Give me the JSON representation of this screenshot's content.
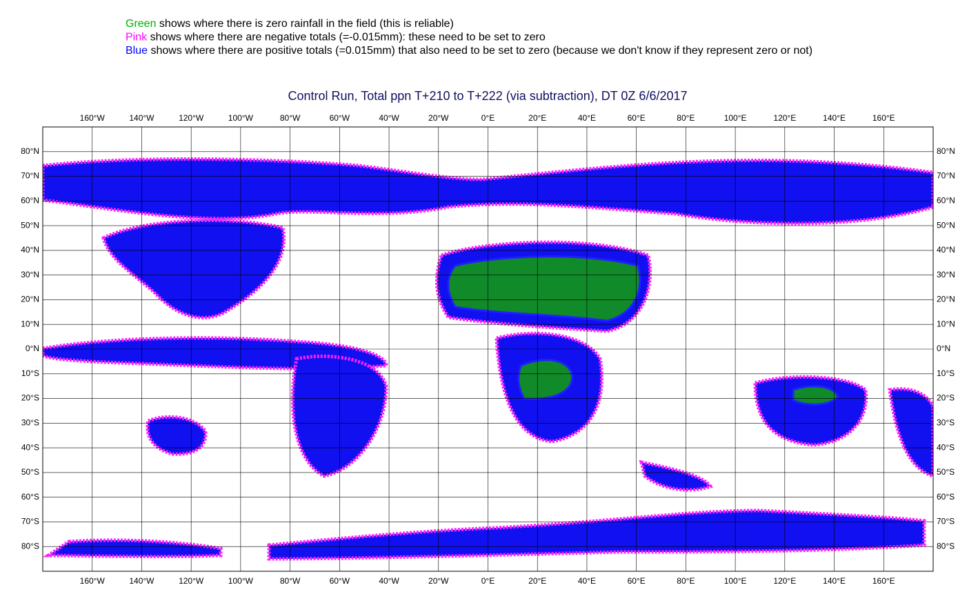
{
  "legend": [
    {
      "label": "Green",
      "color": "#00b000",
      "text": "shows where there is zero rainfall in the field (this is reliable)"
    },
    {
      "label": "Pink",
      "color": "#ff00ff",
      "text": "shows where there are negative totals (=-0.015mm): these need to be set to zero"
    },
    {
      "label": "Blue",
      "color": "#0000ff",
      "text": "shows where there are positive totals (=0.015mm) that also need to be set to zero (because we don't know if they represent zero or not)"
    }
  ],
  "chart_data": {
    "type": "map",
    "title": "Control Run, Total ppn T+210 to T+222 (via subtraction), DT 0Z 6/6/2017",
    "xlim": [
      -180,
      180
    ],
    "ylim": [
      -90,
      90
    ],
    "grid": true,
    "xticks": [
      {
        "value": -160,
        "label": "160°W"
      },
      {
        "value": -140,
        "label": "140°W"
      },
      {
        "value": -120,
        "label": "120°W"
      },
      {
        "value": -100,
        "label": "100°W"
      },
      {
        "value": -80,
        "label": "80°W"
      },
      {
        "value": -60,
        "label": "60°W"
      },
      {
        "value": -40,
        "label": "40°W"
      },
      {
        "value": -20,
        "label": "20°W"
      },
      {
        "value": 0,
        "label": "0°E"
      },
      {
        "value": 20,
        "label": "20°E"
      },
      {
        "value": 40,
        "label": "40°E"
      },
      {
        "value": 60,
        "label": "60°E"
      },
      {
        "value": 80,
        "label": "80°E"
      },
      {
        "value": 100,
        "label": "100°E"
      },
      {
        "value": 120,
        "label": "120°E"
      },
      {
        "value": 140,
        "label": "140°E"
      },
      {
        "value": 160,
        "label": "160°E"
      }
    ],
    "yticks": [
      {
        "value": 80,
        "label": "80°N"
      },
      {
        "value": 70,
        "label": "70°N"
      },
      {
        "value": 60,
        "label": "60°N"
      },
      {
        "value": 50,
        "label": "50°N"
      },
      {
        "value": 40,
        "label": "40°N"
      },
      {
        "value": 30,
        "label": "30°N"
      },
      {
        "value": 20,
        "label": "20°N"
      },
      {
        "value": 10,
        "label": "10°N"
      },
      {
        "value": 0,
        "label": "0°N"
      },
      {
        "value": -10,
        "label": "10°S"
      },
      {
        "value": -20,
        "label": "20°S"
      },
      {
        "value": -30,
        "label": "30°S"
      },
      {
        "value": -40,
        "label": "40°S"
      },
      {
        "value": -50,
        "label": "50°S"
      },
      {
        "value": -60,
        "label": "60°S"
      },
      {
        "value": -70,
        "label": "70°S"
      },
      {
        "value": -80,
        "label": "80°S"
      }
    ]
  }
}
